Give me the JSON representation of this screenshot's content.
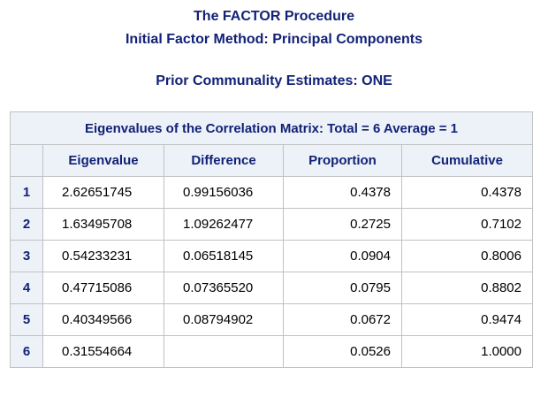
{
  "titles": {
    "procedure": "The FACTOR Procedure",
    "method": "Initial Factor Method: Principal Components",
    "prior": "Prior Communality Estimates: ONE"
  },
  "table": {
    "caption": "Eigenvalues of the Correlation Matrix: Total = 6 Average = 1",
    "headers": {
      "corner": "",
      "eigenvalue": "Eigenvalue",
      "difference": "Difference",
      "proportion": "Proportion",
      "cumulative": "Cumulative"
    },
    "rows": [
      {
        "n": "1",
        "eigenvalue": "2.62651745",
        "difference": "0.99156036",
        "proportion": "0.4378",
        "cumulative": "0.4378"
      },
      {
        "n": "2",
        "eigenvalue": "1.63495708",
        "difference": "1.09262477",
        "proportion": "0.2725",
        "cumulative": "0.7102"
      },
      {
        "n": "3",
        "eigenvalue": "0.54233231",
        "difference": "0.06518145",
        "proportion": "0.0904",
        "cumulative": "0.8006"
      },
      {
        "n": "4",
        "eigenvalue": "0.47715086",
        "difference": "0.07365520",
        "proportion": "0.0795",
        "cumulative": "0.8802"
      },
      {
        "n": "5",
        "eigenvalue": "0.40349566",
        "difference": "0.08794902",
        "proportion": "0.0672",
        "cumulative": "0.9474"
      },
      {
        "n": "6",
        "eigenvalue": "0.31554664",
        "difference": "",
        "proportion": "0.0526",
        "cumulative": "1.0000"
      }
    ]
  },
  "colors": {
    "header_text": "#112277",
    "header_bg": "#edf2f9",
    "border": "#c1c1c1"
  }
}
